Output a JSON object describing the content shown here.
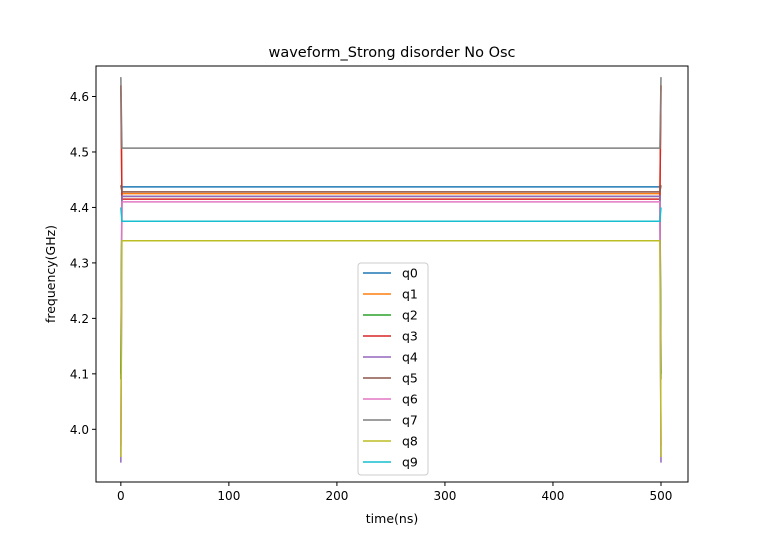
{
  "chart_data": {
    "type": "line",
    "title": "waveform_Strong disorder No Osc",
    "xlabel": "time(ns)",
    "ylabel": "frequency(GHz)",
    "xlim": [
      -23,
      525
    ],
    "ylim": [
      3.905,
      4.655
    ],
    "xticks": [
      0,
      100,
      200,
      300,
      400,
      500
    ],
    "yticks": [
      4.0,
      4.1,
      4.2,
      4.3,
      4.4,
      4.5,
      4.6
    ],
    "xtick_labels": [
      "0",
      "100",
      "200",
      "300",
      "400",
      "500"
    ],
    "ytick_labels": [
      "4.0",
      "4.1",
      "4.2",
      "4.3",
      "4.4",
      "4.5",
      "4.6"
    ],
    "grid": false,
    "legend_position": "lower center",
    "series": [
      {
        "name": "q0",
        "color": "#1f77b4",
        "x": [
          0,
          1,
          499,
          500
        ],
        "y": [
          4.1,
          4.437,
          4.437,
          4.1
        ]
      },
      {
        "name": "q1",
        "color": "#ff7f0e",
        "x": [
          0,
          1,
          499,
          500
        ],
        "y": [
          4.62,
          4.425,
          4.425,
          4.62
        ]
      },
      {
        "name": "q2",
        "color": "#2ca02c",
        "x": [
          0,
          1,
          499,
          500
        ],
        "y": [
          4.09,
          4.42,
          4.42,
          4.09
        ]
      },
      {
        "name": "q3",
        "color": "#d62728",
        "x": [
          0,
          1,
          499,
          500
        ],
        "y": [
          4.62,
          4.415,
          4.415,
          4.62
        ]
      },
      {
        "name": "q4",
        "color": "#9467bd",
        "x": [
          0,
          1,
          499,
          500
        ],
        "y": [
          3.94,
          4.42,
          4.42,
          3.94
        ]
      },
      {
        "name": "q5",
        "color": "#8c564b",
        "x": [
          0,
          1,
          499,
          500
        ],
        "y": [
          4.44,
          4.428,
          4.428,
          4.44
        ]
      },
      {
        "name": "q6",
        "color": "#e377c2",
        "x": [
          0,
          1,
          499,
          500
        ],
        "y": [
          3.97,
          4.41,
          4.41,
          3.97
        ]
      },
      {
        "name": "q7",
        "color": "#7f7f7f",
        "x": [
          0,
          1,
          499,
          500
        ],
        "y": [
          4.635,
          4.507,
          4.507,
          4.635
        ]
      },
      {
        "name": "q8",
        "color": "#bcbd22",
        "x": [
          0,
          1,
          499,
          500
        ],
        "y": [
          3.95,
          4.34,
          4.34,
          3.95
        ]
      },
      {
        "name": "q9",
        "color": "#17becf",
        "x": [
          0,
          1,
          499,
          500
        ],
        "y": [
          4.4,
          4.375,
          4.375,
          4.4
        ]
      }
    ]
  }
}
